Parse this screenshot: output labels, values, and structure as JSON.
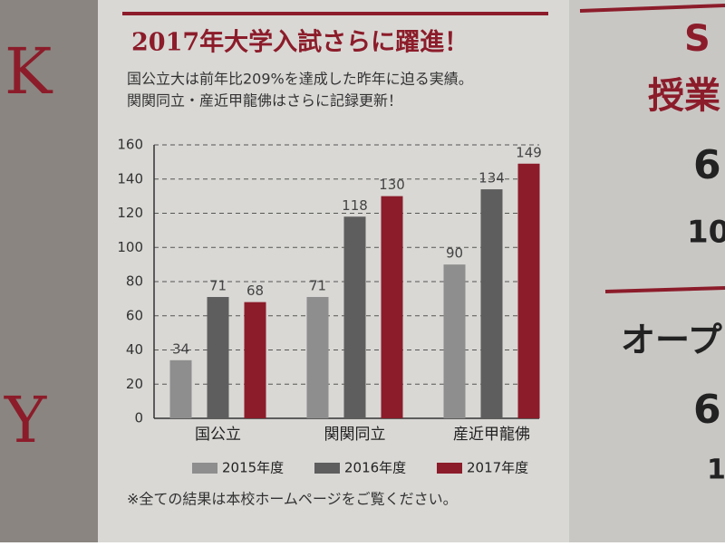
{
  "chart_data": {
    "type": "bar",
    "title": "2017年大学入試さらに躍進！",
    "subtitle": [
      "国公立大は前年比209%を達成した昨年に迫る実績。",
      "関関同立・産近甲龍佛はさらに記録更新！"
    ],
    "categories": [
      "国公立",
      "関関同立",
      "産近甲龍佛"
    ],
    "series": [
      {
        "name": "2015年度",
        "color": "#8e8e8e",
        "values": [
          34,
          71,
          90
        ]
      },
      {
        "name": "2016年度",
        "color": "#5e5e5e",
        "values": [
          71,
          118,
          134
        ]
      },
      {
        "name": "2017年度",
        "color": "#8c1c2a",
        "values": [
          68,
          130,
          149
        ]
      }
    ],
    "ylim": [
      0,
      160
    ],
    "yticks": [
      0,
      20,
      40,
      60,
      80,
      100,
      120,
      140,
      160
    ],
    "grid": true,
    "legend": "bottom",
    "note": "※全ての結果は本校ホームページをご覧ください。"
  },
  "side_texts": [
    "S",
    "授業",
    "6",
    "10",
    "オープ",
    "6",
    "1"
  ],
  "left_texts": [
    "K",
    "Y"
  ]
}
